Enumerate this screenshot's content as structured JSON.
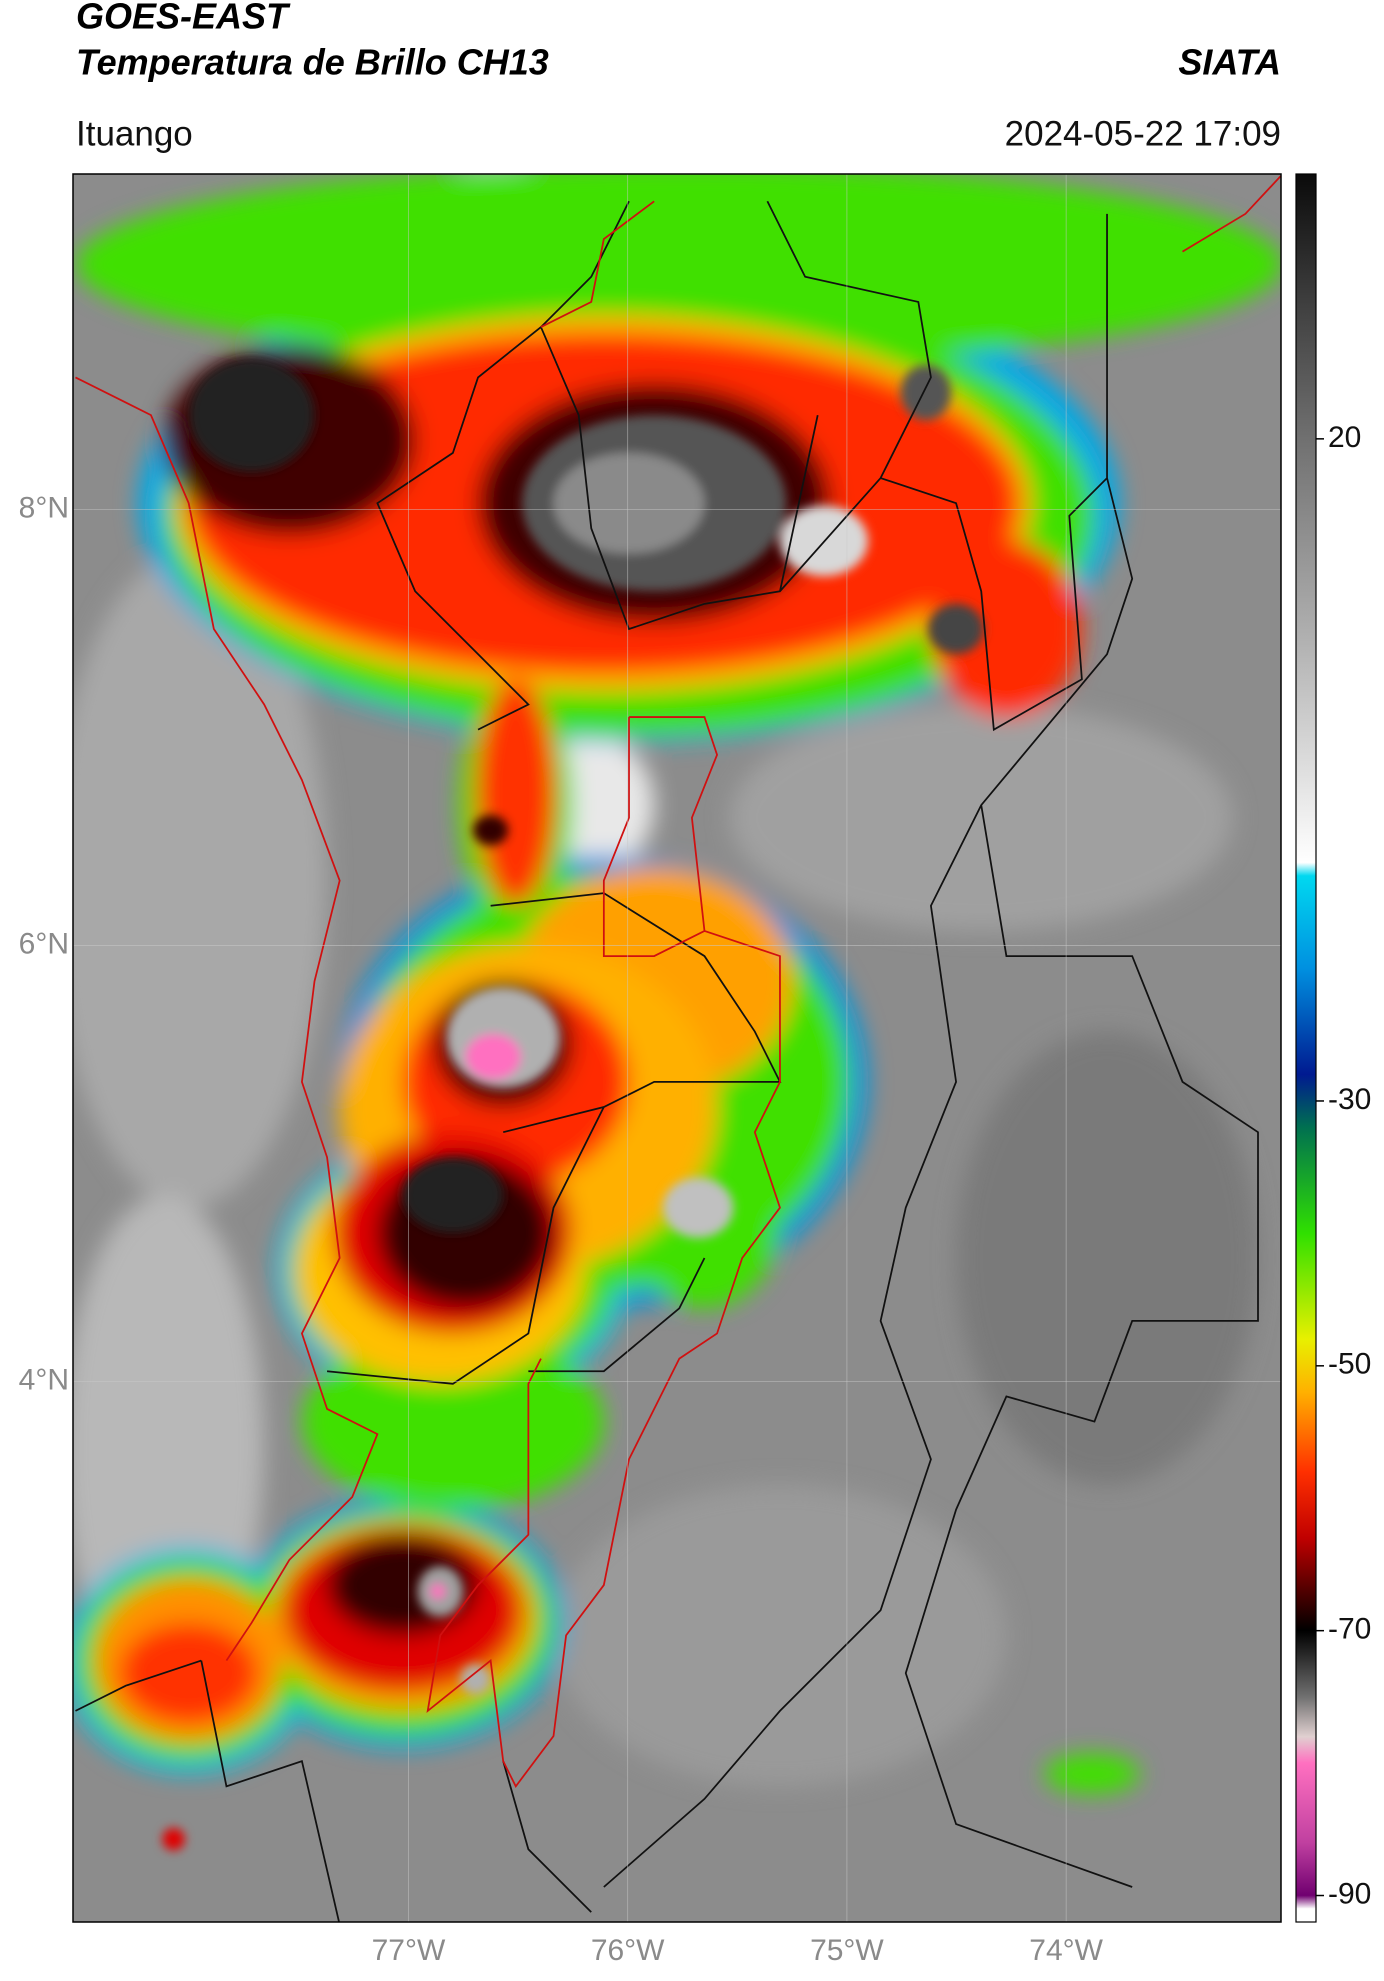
{
  "header": {
    "title": "GOES-EAST",
    "subtitle": "Temperatura de Brillo CH13",
    "source": "SIATA",
    "location": "Ituango",
    "datetime": "2024-05-22 17:09"
  },
  "map": {
    "xlim": [
      -78.53,
      -73.02
    ],
    "ylim": [
      1.52,
      9.54
    ],
    "xticks": [
      {
        "value": -77,
        "label": "77°W"
      },
      {
        "value": -76,
        "label": "76°W"
      },
      {
        "value": -75,
        "label": "75°W"
      },
      {
        "value": -74,
        "label": "74°W"
      }
    ],
    "yticks": [
      {
        "value": 8,
        "label": "8°N"
      },
      {
        "value": 6,
        "label": "6°N"
      },
      {
        "value": 4,
        "label": "4°N"
      }
    ]
  },
  "colorbar": {
    "clim": [
      -92,
      40
    ],
    "ticks": [
      20,
      -30,
      -50,
      -70,
      -90
    ],
    "colormap": [
      {
        "value": 40,
        "color": "#0a0a0a"
      },
      {
        "value": 30,
        "color": "#404040"
      },
      {
        "value": 20,
        "color": "#707070"
      },
      {
        "value": 5,
        "color": "#b0b0b0"
      },
      {
        "value": -12,
        "color": "#ffffff"
      },
      {
        "value": -13,
        "color": "#00d8f0"
      },
      {
        "value": -20,
        "color": "#0090e0"
      },
      {
        "value": -28,
        "color": "#001a90"
      },
      {
        "value": -32,
        "color": "#007050"
      },
      {
        "value": -40,
        "color": "#30e000"
      },
      {
        "value": -48,
        "color": "#e8f000"
      },
      {
        "value": -52,
        "color": "#ffb000"
      },
      {
        "value": -58,
        "color": "#ff3000"
      },
      {
        "value": -63,
        "color": "#c00000"
      },
      {
        "value": -67,
        "color": "#500000"
      },
      {
        "value": -70,
        "color": "#000000"
      },
      {
        "value": -75,
        "color": "#707070"
      },
      {
        "value": -78,
        "color": "#e0d0d0"
      },
      {
        "value": -80,
        "color": "#ff70c0"
      },
      {
        "value": -86,
        "color": "#c040a0"
      },
      {
        "value": -90,
        "color": "#700070"
      },
      {
        "value": -91,
        "color": "#ffffff"
      },
      {
        "value": -92,
        "color": "#ffffff"
      }
    ]
  }
}
